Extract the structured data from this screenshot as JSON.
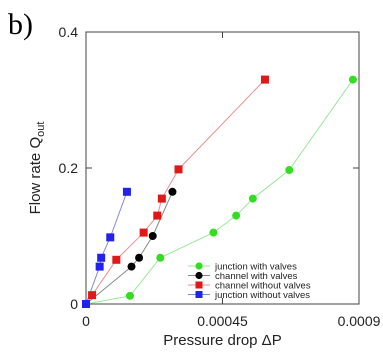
{
  "panel_label": "b)",
  "chart_data": {
    "type": "scatter",
    "title": "",
    "xlabel": "Pressure drop ΔP",
    "ylabel_main": "Flow rate Q",
    "ylabel_sub": "out",
    "xlim": [
      0,
      0.0009
    ],
    "ylim": [
      0,
      0.4
    ],
    "xticks": [
      0,
      0.00045,
      0.0009
    ],
    "xtick_labels": [
      "0",
      "0.00045",
      "0.0009"
    ],
    "yticks": [
      0,
      0.2,
      0.4
    ],
    "ytick_labels": [
      "0",
      "0.2",
      "0.4"
    ],
    "grid": false,
    "legend_position": "bottom-right",
    "series": [
      {
        "name": "junction with valves",
        "color": "#33dd22",
        "line_color": "#99e899",
        "marker": "circle",
        "x": [
          0.0,
          0.000145,
          0.000245,
          0.00042,
          0.000495,
          0.00055,
          0.00067,
          0.00088
        ],
        "y": [
          0.0,
          0.012,
          0.068,
          0.105,
          0.13,
          0.155,
          0.197,
          0.33
        ]
      },
      {
        "name": "channel with valves",
        "color": "#000000",
        "line_color": "#888888",
        "marker": "circle",
        "x": [
          0.0,
          0.00015,
          0.000175,
          0.00022,
          0.000285
        ],
        "y": [
          0.0,
          0.055,
          0.068,
          0.1,
          0.165
        ]
      },
      {
        "name": "channel without valves",
        "color": "#e01818",
        "line_color": "#e89090",
        "marker": "square",
        "x": [
          0.0,
          2e-05,
          0.0001,
          0.00019,
          0.000235,
          0.00025,
          0.000305,
          0.00059
        ],
        "y": [
          0.0,
          0.013,
          0.065,
          0.105,
          0.13,
          0.155,
          0.198,
          0.33
        ]
      },
      {
        "name": "junction without valves",
        "color": "#2222ee",
        "line_color": "#8888cc",
        "marker": "square",
        "x": [
          0.0,
          4.5e-05,
          5e-05,
          8e-05,
          0.000135
        ],
        "y": [
          0.0,
          0.055,
          0.068,
          0.098,
          0.165
        ]
      }
    ]
  }
}
